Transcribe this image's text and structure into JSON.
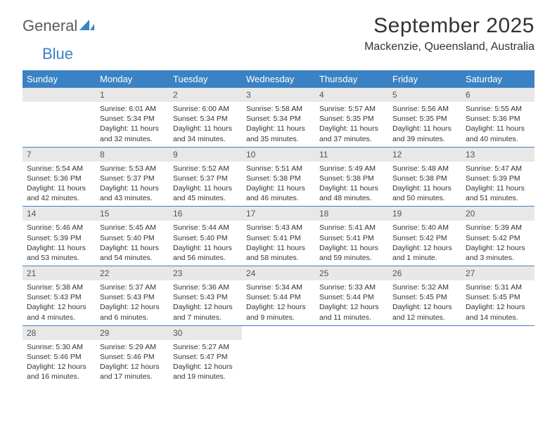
{
  "logo": {
    "word1": "General",
    "word2": "Blue"
  },
  "title": "September 2025",
  "location": "Mackenzie, Queensland, Australia",
  "colors": {
    "header_bg": "#3b82c4",
    "header_text": "#ffffff",
    "daynum_bg": "#e8e8e8",
    "daynum_text": "#555555",
    "body_text": "#333333",
    "rule": "#3b82c4",
    "logo_gray": "#5a5a5a",
    "logo_blue": "#3b82c4"
  },
  "weekdays": [
    "Sunday",
    "Monday",
    "Tuesday",
    "Wednesday",
    "Thursday",
    "Friday",
    "Saturday"
  ],
  "weeks": [
    [
      null,
      {
        "n": "1",
        "sr": "Sunrise: 6:01 AM",
        "ss": "Sunset: 5:34 PM",
        "dl": "Daylight: 11 hours and 32 minutes."
      },
      {
        "n": "2",
        "sr": "Sunrise: 6:00 AM",
        "ss": "Sunset: 5:34 PM",
        "dl": "Daylight: 11 hours and 34 minutes."
      },
      {
        "n": "3",
        "sr": "Sunrise: 5:58 AM",
        "ss": "Sunset: 5:34 PM",
        "dl": "Daylight: 11 hours and 35 minutes."
      },
      {
        "n": "4",
        "sr": "Sunrise: 5:57 AM",
        "ss": "Sunset: 5:35 PM",
        "dl": "Daylight: 11 hours and 37 minutes."
      },
      {
        "n": "5",
        "sr": "Sunrise: 5:56 AM",
        "ss": "Sunset: 5:35 PM",
        "dl": "Daylight: 11 hours and 39 minutes."
      },
      {
        "n": "6",
        "sr": "Sunrise: 5:55 AM",
        "ss": "Sunset: 5:36 PM",
        "dl": "Daylight: 11 hours and 40 minutes."
      }
    ],
    [
      {
        "n": "7",
        "sr": "Sunrise: 5:54 AM",
        "ss": "Sunset: 5:36 PM",
        "dl": "Daylight: 11 hours and 42 minutes."
      },
      {
        "n": "8",
        "sr": "Sunrise: 5:53 AM",
        "ss": "Sunset: 5:37 PM",
        "dl": "Daylight: 11 hours and 43 minutes."
      },
      {
        "n": "9",
        "sr": "Sunrise: 5:52 AM",
        "ss": "Sunset: 5:37 PM",
        "dl": "Daylight: 11 hours and 45 minutes."
      },
      {
        "n": "10",
        "sr": "Sunrise: 5:51 AM",
        "ss": "Sunset: 5:38 PM",
        "dl": "Daylight: 11 hours and 46 minutes."
      },
      {
        "n": "11",
        "sr": "Sunrise: 5:49 AM",
        "ss": "Sunset: 5:38 PM",
        "dl": "Daylight: 11 hours and 48 minutes."
      },
      {
        "n": "12",
        "sr": "Sunrise: 5:48 AM",
        "ss": "Sunset: 5:38 PM",
        "dl": "Daylight: 11 hours and 50 minutes."
      },
      {
        "n": "13",
        "sr": "Sunrise: 5:47 AM",
        "ss": "Sunset: 5:39 PM",
        "dl": "Daylight: 11 hours and 51 minutes."
      }
    ],
    [
      {
        "n": "14",
        "sr": "Sunrise: 5:46 AM",
        "ss": "Sunset: 5:39 PM",
        "dl": "Daylight: 11 hours and 53 minutes."
      },
      {
        "n": "15",
        "sr": "Sunrise: 5:45 AM",
        "ss": "Sunset: 5:40 PM",
        "dl": "Daylight: 11 hours and 54 minutes."
      },
      {
        "n": "16",
        "sr": "Sunrise: 5:44 AM",
        "ss": "Sunset: 5:40 PM",
        "dl": "Daylight: 11 hours and 56 minutes."
      },
      {
        "n": "17",
        "sr": "Sunrise: 5:43 AM",
        "ss": "Sunset: 5:41 PM",
        "dl": "Daylight: 11 hours and 58 minutes."
      },
      {
        "n": "18",
        "sr": "Sunrise: 5:41 AM",
        "ss": "Sunset: 5:41 PM",
        "dl": "Daylight: 11 hours and 59 minutes."
      },
      {
        "n": "19",
        "sr": "Sunrise: 5:40 AM",
        "ss": "Sunset: 5:42 PM",
        "dl": "Daylight: 12 hours and 1 minute."
      },
      {
        "n": "20",
        "sr": "Sunrise: 5:39 AM",
        "ss": "Sunset: 5:42 PM",
        "dl": "Daylight: 12 hours and 3 minutes."
      }
    ],
    [
      {
        "n": "21",
        "sr": "Sunrise: 5:38 AM",
        "ss": "Sunset: 5:43 PM",
        "dl": "Daylight: 12 hours and 4 minutes."
      },
      {
        "n": "22",
        "sr": "Sunrise: 5:37 AM",
        "ss": "Sunset: 5:43 PM",
        "dl": "Daylight: 12 hours and 6 minutes."
      },
      {
        "n": "23",
        "sr": "Sunrise: 5:36 AM",
        "ss": "Sunset: 5:43 PM",
        "dl": "Daylight: 12 hours and 7 minutes."
      },
      {
        "n": "24",
        "sr": "Sunrise: 5:34 AM",
        "ss": "Sunset: 5:44 PM",
        "dl": "Daylight: 12 hours and 9 minutes."
      },
      {
        "n": "25",
        "sr": "Sunrise: 5:33 AM",
        "ss": "Sunset: 5:44 PM",
        "dl": "Daylight: 12 hours and 11 minutes."
      },
      {
        "n": "26",
        "sr": "Sunrise: 5:32 AM",
        "ss": "Sunset: 5:45 PM",
        "dl": "Daylight: 12 hours and 12 minutes."
      },
      {
        "n": "27",
        "sr": "Sunrise: 5:31 AM",
        "ss": "Sunset: 5:45 PM",
        "dl": "Daylight: 12 hours and 14 minutes."
      }
    ],
    [
      {
        "n": "28",
        "sr": "Sunrise: 5:30 AM",
        "ss": "Sunset: 5:46 PM",
        "dl": "Daylight: 12 hours and 16 minutes."
      },
      {
        "n": "29",
        "sr": "Sunrise: 5:29 AM",
        "ss": "Sunset: 5:46 PM",
        "dl": "Daylight: 12 hours and 17 minutes."
      },
      {
        "n": "30",
        "sr": "Sunrise: 5:27 AM",
        "ss": "Sunset: 5:47 PM",
        "dl": "Daylight: 12 hours and 19 minutes."
      },
      null,
      null,
      null,
      null
    ]
  ]
}
